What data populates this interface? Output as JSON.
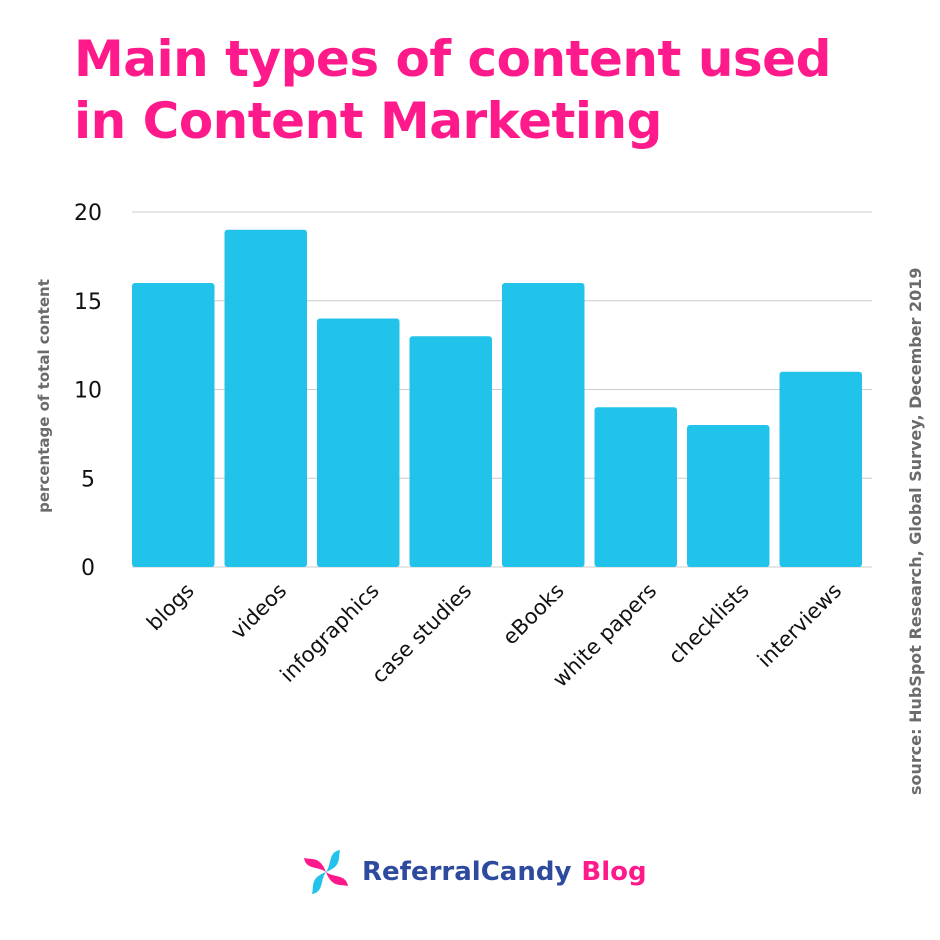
{
  "title_lines": [
    "Main types of content used",
    "in Content Marketing"
  ],
  "source": "source: HubSpot Research, Global Survey, December 2019",
  "brand": {
    "name": "ReferralCandy",
    "suffix": "Blog",
    "logo_icon": "referralcandy-swirl-logo-icon"
  },
  "colors": {
    "title": "#ff1a8c",
    "bar": "#22c3ea",
    "axis_text": "#111111",
    "ylabel": "#6b6b6b",
    "grid": "#cccccc",
    "brand_blue": "#2e4a9e",
    "brand_pink": "#ff1a8c",
    "brand_cyan": "#22c3ea"
  },
  "chart_data": {
    "type": "bar",
    "title": "Main types of content used in Content Marketing",
    "xlabel": "",
    "ylabel": "percentage of total content",
    "ylim": [
      0,
      20
    ],
    "yticks": [
      0,
      5,
      10,
      15,
      20
    ],
    "grid": true,
    "legend": "none",
    "categories": [
      "blogs",
      "videos",
      "infographics",
      "case studies",
      "eBooks",
      "white papers",
      "checklists",
      "interviews"
    ],
    "values": [
      16,
      19,
      14,
      13,
      16,
      9,
      8,
      11
    ]
  }
}
